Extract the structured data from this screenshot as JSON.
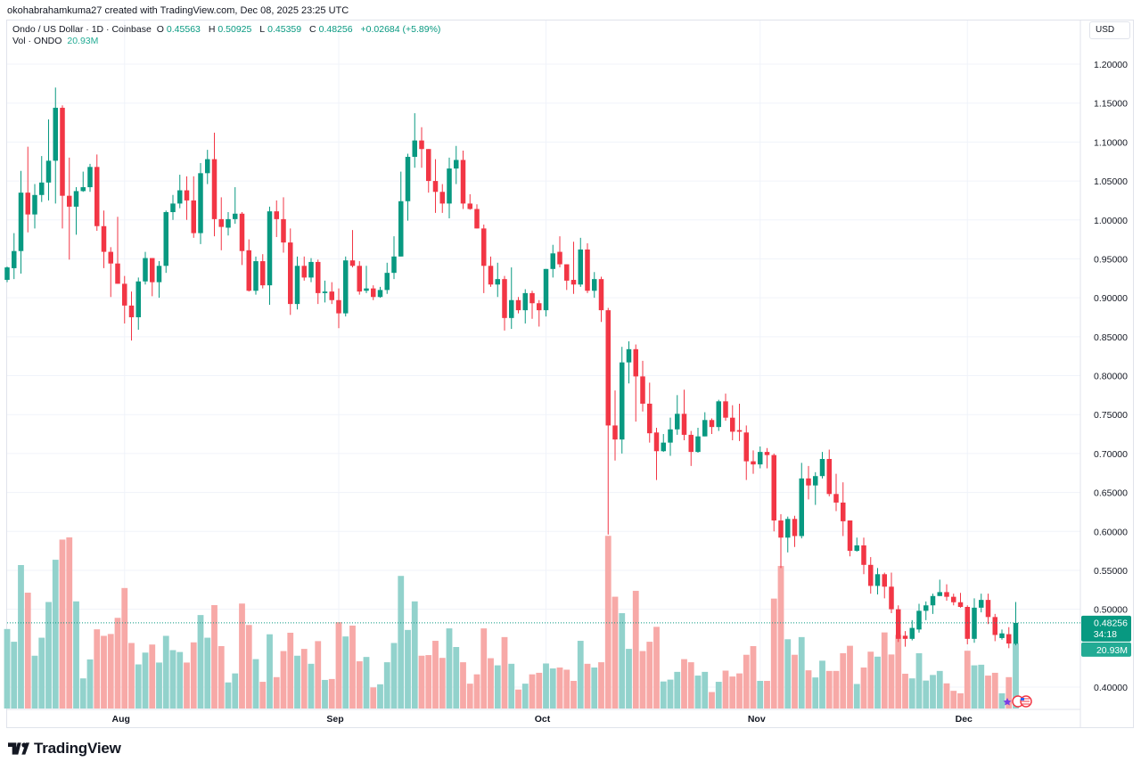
{
  "credit": "okohabrahamkuma27 created with TradingView.com, Dec 08, 2025 23:25 UTC",
  "legend": {
    "symbol": "Ondo / US Dollar · 1D · Coinbase",
    "o_label": "O",
    "o": "0.45563",
    "h_label": "H",
    "h": "0.50925",
    "l_label": "L",
    "l": "0.45359",
    "c_label": "C",
    "c": "0.48256",
    "change": "+0.02684 (+5.89%)",
    "vol_label": "Vol · ONDO",
    "vol": "20.93M"
  },
  "currency_button": "USD",
  "last_price": {
    "price": "0.48256",
    "countdown": "34:18",
    "volume": "20.93M"
  },
  "brand": "TradingView",
  "colors": {
    "up": "#089981",
    "down": "#f23645",
    "vol_up": "#92d2cc",
    "vol_down": "#f7a9a7",
    "grid": "#f0f3fa"
  },
  "chart_data": {
    "type": "candlestick",
    "title": "",
    "xlabel": "",
    "ylabel": "",
    "ylim": [
      0.37,
      1.23
    ],
    "grid": true,
    "y_ticks": [
      "1.20000",
      "1.15000",
      "1.10000",
      "1.05000",
      "1.00000",
      "0.95000",
      "0.90000",
      "0.85000",
      "0.80000",
      "0.75000",
      "0.70000",
      "0.65000",
      "0.60000",
      "0.55000",
      "0.50000",
      "0.40000"
    ],
    "x_ticks": [
      {
        "label": "Aug",
        "date": "2025-08-01"
      },
      {
        "label": "Sep",
        "date": "2025-09-01"
      },
      {
        "label": "Oct",
        "date": "2025-10-01"
      },
      {
        "label": "Nov",
        "date": "2025-11-01"
      },
      {
        "label": "Dec",
        "date": "2025-12-01"
      }
    ],
    "columns": [
      "date",
      "open",
      "high",
      "low",
      "close",
      "volume_millions"
    ],
    "candles": [
      [
        "2025-07-15",
        0.923,
        0.94,
        0.92,
        0.939,
        25.6
      ],
      [
        "2025-07-16",
        0.938,
        0.983,
        0.924,
        0.96,
        21.5
      ],
      [
        "2025-07-17",
        0.96,
        1.063,
        0.931,
        1.035,
        46.2
      ],
      [
        "2025-07-18",
        1.035,
        1.094,
        0.984,
        1.007,
        37.3
      ],
      [
        "2025-07-19",
        1.007,
        1.046,
        0.989,
        1.032,
        17.0
      ],
      [
        "2025-07-20",
        1.032,
        1.082,
        1.023,
        1.048,
        22.8
      ],
      [
        "2025-07-21",
        1.048,
        1.129,
        1.025,
        1.076,
        34.3
      ],
      [
        "2025-07-22",
        1.076,
        1.17,
        1.021,
        1.144,
        47.9
      ],
      [
        "2025-07-23",
        1.144,
        1.147,
        0.989,
        1.031,
        54.4
      ],
      [
        "2025-07-24",
        1.031,
        1.08,
        0.949,
        1.017,
        55.1
      ],
      [
        "2025-07-25",
        1.017,
        1.042,
        0.981,
        1.037,
        34.5
      ],
      [
        "2025-07-26",
        1.037,
        1.062,
        1.036,
        1.042,
        9.7
      ],
      [
        "2025-07-27",
        1.042,
        1.072,
        1.036,
        1.068,
        15.8
      ],
      [
        "2025-07-28",
        1.068,
        1.084,
        0.986,
        0.992,
        25.5
      ],
      [
        "2025-07-29",
        0.992,
        1.012,
        0.938,
        0.959,
        23.4
      ],
      [
        "2025-07-30",
        0.959,
        0.965,
        0.901,
        0.944,
        24.0
      ],
      [
        "2025-07-31",
        0.944,
        1.004,
        0.918,
        0.918,
        29.2
      ],
      [
        "2025-08-01",
        0.918,
        0.928,
        0.867,
        0.89,
        38.8
      ],
      [
        "2025-08-02",
        0.89,
        0.908,
        0.845,
        0.875,
        21.1
      ],
      [
        "2025-08-03",
        0.875,
        0.926,
        0.859,
        0.921,
        14.2
      ],
      [
        "2025-08-04",
        0.921,
        0.959,
        0.917,
        0.951,
        18.0
      ],
      [
        "2025-08-05",
        0.951,
        0.951,
        0.902,
        0.92,
        20.6
      ],
      [
        "2025-08-06",
        0.92,
        0.947,
        0.9,
        0.941,
        14.8
      ],
      [
        "2025-08-07",
        0.941,
        1.012,
        0.932,
        1.01,
        23.4
      ],
      [
        "2025-08-08",
        1.01,
        1.032,
        1.0,
        1.021,
        18.8
      ],
      [
        "2025-08-09",
        1.021,
        1.058,
        1.015,
        1.038,
        18.2
      ],
      [
        "2025-08-10",
        1.038,
        1.056,
        1.0,
        1.025,
        14.8
      ],
      [
        "2025-08-11",
        1.025,
        1.056,
        0.977,
        0.983,
        21.3
      ],
      [
        "2025-08-12",
        0.983,
        1.073,
        0.969,
        1.06,
        30.1
      ],
      [
        "2025-08-13",
        1.06,
        1.09,
        1.046,
        1.078,
        22.8
      ],
      [
        "2025-08-14",
        1.078,
        1.112,
        0.979,
        1.001,
        33.3
      ],
      [
        "2025-08-15",
        1.001,
        1.029,
        0.961,
        0.991,
        20.1
      ],
      [
        "2025-08-16",
        0.99,
        1.01,
        0.98,
        1.001,
        8.4
      ],
      [
        "2025-08-17",
        1.001,
        1.042,
        0.995,
        1.008,
        11.3
      ],
      [
        "2025-08-18",
        1.008,
        1.01,
        0.942,
        0.96,
        33.8
      ],
      [
        "2025-08-19",
        0.961,
        0.975,
        0.908,
        0.909,
        26.9
      ],
      [
        "2025-08-20",
        0.909,
        0.953,
        0.904,
        0.947,
        15.9
      ],
      [
        "2025-08-21",
        0.947,
        0.956,
        0.912,
        0.916,
        8.6
      ],
      [
        "2025-08-22",
        0.916,
        1.017,
        0.891,
        1.011,
        23.9
      ],
      [
        "2025-08-23",
        1.011,
        1.025,
        0.978,
        1.001,
        10.1
      ],
      [
        "2025-08-24",
        1.001,
        1.029,
        0.958,
        0.971,
        18.5
      ],
      [
        "2025-08-25",
        0.971,
        0.989,
        0.878,
        0.892,
        24.4
      ],
      [
        "2025-08-26",
        0.892,
        0.953,
        0.885,
        0.941,
        17.0
      ],
      [
        "2025-08-27",
        0.941,
        0.953,
        0.922,
        0.926,
        19.2
      ],
      [
        "2025-08-28",
        0.926,
        0.951,
        0.92,
        0.946,
        14.4
      ],
      [
        "2025-08-29",
        0.946,
        0.949,
        0.892,
        0.906,
        21.7
      ],
      [
        "2025-08-30",
        0.906,
        0.922,
        0.894,
        0.908,
        9.2
      ],
      [
        "2025-08-31",
        0.908,
        0.92,
        0.892,
        0.897,
        9.5
      ],
      [
        "2025-09-01",
        0.897,
        0.912,
        0.861,
        0.88,
        27.8
      ],
      [
        "2025-09-02",
        0.88,
        0.953,
        0.876,
        0.948,
        23.2
      ],
      [
        "2025-09-03",
        0.948,
        0.987,
        0.939,
        0.941,
        26.7
      ],
      [
        "2025-09-04",
        0.941,
        0.947,
        0.904,
        0.908,
        15.2
      ],
      [
        "2025-09-05",
        0.909,
        0.941,
        0.906,
        0.912,
        16.6
      ],
      [
        "2025-09-06",
        0.912,
        0.916,
        0.897,
        0.901,
        6.8
      ],
      [
        "2025-09-07",
        0.901,
        0.914,
        0.9,
        0.91,
        7.8
      ],
      [
        "2025-09-08",
        0.91,
        0.945,
        0.905,
        0.932,
        14.9
      ],
      [
        "2025-09-09",
        0.932,
        0.979,
        0.924,
        0.953,
        21.1
      ],
      [
        "2025-09-10",
        0.953,
        1.062,
        0.953,
        1.024,
        42.7
      ],
      [
        "2025-09-11",
        1.024,
        1.085,
        0.999,
        1.081,
        25.3
      ],
      [
        "2025-09-12",
        1.081,
        1.137,
        1.067,
        1.102,
        34.5
      ],
      [
        "2025-09-13",
        1.102,
        1.119,
        1.067,
        1.091,
        17.0
      ],
      [
        "2025-09-14",
        1.091,
        1.091,
        1.035,
        1.05,
        17.2
      ],
      [
        "2025-09-15",
        1.05,
        1.078,
        1.009,
        1.036,
        21.8
      ],
      [
        "2025-09-16",
        1.036,
        1.046,
        1.009,
        1.021,
        16.3
      ],
      [
        "2025-09-17",
        1.021,
        1.08,
        1.002,
        1.066,
        25.8
      ],
      [
        "2025-09-18",
        1.066,
        1.095,
        1.046,
        1.077,
        19.8
      ],
      [
        "2025-09-19",
        1.077,
        1.089,
        1.014,
        1.021,
        14.9
      ],
      [
        "2025-09-20",
        1.021,
        1.033,
        1.013,
        1.014,
        8.0
      ],
      [
        "2025-09-21",
        1.014,
        1.02,
        0.989,
        0.989,
        11.0
      ],
      [
        "2025-09-22",
        0.989,
        0.994,
        0.906,
        0.941,
        25.8
      ],
      [
        "2025-09-23",
        0.941,
        0.953,
        0.914,
        0.917,
        16.2
      ],
      [
        "2025-09-24",
        0.917,
        0.945,
        0.901,
        0.924,
        13.9
      ],
      [
        "2025-09-25",
        0.924,
        0.928,
        0.858,
        0.874,
        23.0
      ],
      [
        "2025-09-26",
        0.874,
        0.939,
        0.86,
        0.897,
        14.4
      ],
      [
        "2025-09-27",
        0.897,
        0.901,
        0.88,
        0.884,
        6.1
      ],
      [
        "2025-09-28",
        0.884,
        0.911,
        0.867,
        0.906,
        8.0
      ],
      [
        "2025-09-29",
        0.906,
        0.909,
        0.873,
        0.893,
        11.0
      ],
      [
        "2025-09-30",
        0.893,
        0.897,
        0.863,
        0.884,
        11.5
      ],
      [
        "2025-10-01",
        0.884,
        0.937,
        0.876,
        0.937,
        14.5
      ],
      [
        "2025-10-02",
        0.937,
        0.968,
        0.926,
        0.957,
        12.9
      ],
      [
        "2025-10-03",
        0.959,
        0.979,
        0.939,
        0.943,
        13.2
      ],
      [
        "2025-10-04",
        0.943,
        0.943,
        0.91,
        0.922,
        12.5
      ],
      [
        "2025-10-05",
        0.923,
        0.972,
        0.905,
        0.917,
        8.9
      ],
      [
        "2025-10-06",
        0.917,
        0.977,
        0.914,
        0.962,
        21.8
      ],
      [
        "2025-10-07",
        0.962,
        0.97,
        0.906,
        0.909,
        14.4
      ],
      [
        "2025-10-08",
        0.909,
        0.933,
        0.9,
        0.924,
        13.2
      ],
      [
        "2025-10-09",
        0.924,
        0.927,
        0.869,
        0.884,
        14.9
      ],
      [
        "2025-10-10",
        0.884,
        0.887,
        0.596,
        0.736,
        55.6
      ],
      [
        "2025-10-11",
        0.736,
        0.781,
        0.691,
        0.718,
        36.0
      ],
      [
        "2025-10-12",
        0.718,
        0.837,
        0.7,
        0.817,
        30.7
      ],
      [
        "2025-10-13",
        0.817,
        0.844,
        0.79,
        0.834,
        19.2
      ],
      [
        "2025-10-14",
        0.834,
        0.84,
        0.741,
        0.799,
        37.9
      ],
      [
        "2025-10-15",
        0.799,
        0.819,
        0.754,
        0.764,
        18.5
      ],
      [
        "2025-10-16",
        0.764,
        0.791,
        0.714,
        0.726,
        21.5
      ],
      [
        "2025-10-17",
        0.727,
        0.733,
        0.666,
        0.703,
        26.3
      ],
      [
        "2025-10-18",
        0.703,
        0.725,
        0.702,
        0.714,
        8.7
      ],
      [
        "2025-10-19",
        0.714,
        0.746,
        0.697,
        0.731,
        9.3
      ],
      [
        "2025-10-20",
        0.731,
        0.775,
        0.724,
        0.751,
        11.8
      ],
      [
        "2025-10-21",
        0.751,
        0.782,
        0.717,
        0.724,
        15.9
      ],
      [
        "2025-10-22",
        0.724,
        0.729,
        0.684,
        0.702,
        14.9
      ],
      [
        "2025-10-23",
        0.702,
        0.733,
        0.701,
        0.722,
        10.6
      ],
      [
        "2025-10-24",
        0.722,
        0.753,
        0.722,
        0.743,
        11.8
      ],
      [
        "2025-10-25",
        0.743,
        0.745,
        0.725,
        0.734,
        5.3
      ],
      [
        "2025-10-26",
        0.734,
        0.769,
        0.729,
        0.767,
        8.6
      ],
      [
        "2025-10-27",
        0.767,
        0.777,
        0.742,
        0.746,
        12.2
      ],
      [
        "2025-10-28",
        0.746,
        0.762,
        0.717,
        0.728,
        10.3
      ],
      [
        "2025-10-29",
        0.73,
        0.764,
        0.716,
        0.728,
        11.3
      ],
      [
        "2025-10-30",
        0.727,
        0.736,
        0.666,
        0.69,
        17.3
      ],
      [
        "2025-10-31",
        0.69,
        0.704,
        0.674,
        0.686,
        20.1
      ],
      [
        "2025-11-01",
        0.686,
        0.709,
        0.681,
        0.702,
        8.9
      ],
      [
        "2025-11-02",
        0.702,
        0.707,
        0.681,
        0.698,
        8.9
      ],
      [
        "2025-11-03",
        0.698,
        0.7,
        0.6,
        0.614,
        35.4
      ],
      [
        "2025-11-04",
        0.614,
        0.622,
        0.553,
        0.592,
        45.9
      ],
      [
        "2025-11-05",
        0.592,
        0.619,
        0.573,
        0.616,
        22.3
      ],
      [
        "2025-11-06",
        0.616,
        0.62,
        0.58,
        0.594,
        17.3
      ],
      [
        "2025-11-07",
        0.594,
        0.688,
        0.591,
        0.668,
        23.0
      ],
      [
        "2025-11-08",
        0.668,
        0.684,
        0.641,
        0.659,
        12.3
      ],
      [
        "2025-11-09",
        0.659,
        0.676,
        0.634,
        0.671,
        10.0
      ],
      [
        "2025-11-10",
        0.671,
        0.702,
        0.668,
        0.693,
        15.4
      ],
      [
        "2025-11-11",
        0.693,
        0.705,
        0.645,
        0.648,
        12.1
      ],
      [
        "2025-11-12",
        0.648,
        0.674,
        0.626,
        0.637,
        12.1
      ],
      [
        "2025-11-13",
        0.637,
        0.663,
        0.594,
        0.613,
        17.8
      ],
      [
        "2025-11-14",
        0.614,
        0.614,
        0.568,
        0.575,
        20.2
      ],
      [
        "2025-11-15",
        0.575,
        0.592,
        0.574,
        0.582,
        7.9
      ],
      [
        "2025-11-16",
        0.582,
        0.592,
        0.545,
        0.557,
        13.2
      ],
      [
        "2025-11-17",
        0.557,
        0.567,
        0.52,
        0.53,
        18.3
      ],
      [
        "2025-11-18",
        0.53,
        0.553,
        0.519,
        0.545,
        16.7
      ],
      [
        "2025-11-19",
        0.545,
        0.547,
        0.514,
        0.529,
        24.5
      ],
      [
        "2025-11-20",
        0.529,
        0.547,
        0.495,
        0.5,
        17.4
      ],
      [
        "2025-11-21",
        0.5,
        0.505,
        0.458,
        0.462,
        23.7
      ],
      [
        "2025-11-22",
        0.466,
        0.472,
        0.452,
        0.462,
        11.2
      ],
      [
        "2025-11-23",
        0.462,
        0.486,
        0.46,
        0.476,
        9.7
      ],
      [
        "2025-11-24",
        0.474,
        0.507,
        0.47,
        0.498,
        17.8
      ],
      [
        "2025-11-25",
        0.498,
        0.51,
        0.486,
        0.505,
        9.0
      ],
      [
        "2025-11-26",
        0.505,
        0.52,
        0.494,
        0.517,
        10.8
      ],
      [
        "2025-11-27",
        0.517,
        0.538,
        0.517,
        0.522,
        12.1
      ],
      [
        "2025-11-28",
        0.522,
        0.532,
        0.511,
        0.516,
        8.1
      ],
      [
        "2025-11-29",
        0.516,
        0.52,
        0.505,
        0.509,
        5.7
      ],
      [
        "2025-11-30",
        0.509,
        0.521,
        0.502,
        0.503,
        4.9
      ],
      [
        "2025-12-01",
        0.503,
        0.505,
        0.455,
        0.462,
        18.6
      ],
      [
        "2025-12-02",
        0.462,
        0.514,
        0.457,
        0.502,
        13.9
      ],
      [
        "2025-12-03",
        0.502,
        0.52,
        0.496,
        0.512,
        14.1
      ],
      [
        "2025-12-04",
        0.512,
        0.52,
        0.481,
        0.49,
        10.6
      ],
      [
        "2025-12-05",
        0.49,
        0.494,
        0.459,
        0.467,
        11.5
      ],
      [
        "2025-12-06",
        0.463,
        0.474,
        0.461,
        0.469,
        4.9
      ],
      [
        "2025-12-07",
        0.468,
        0.477,
        0.45,
        0.456,
        10.1
      ],
      [
        "2025-12-08",
        0.45563,
        0.50925,
        0.45359,
        0.48256,
        20.93
      ]
    ]
  }
}
